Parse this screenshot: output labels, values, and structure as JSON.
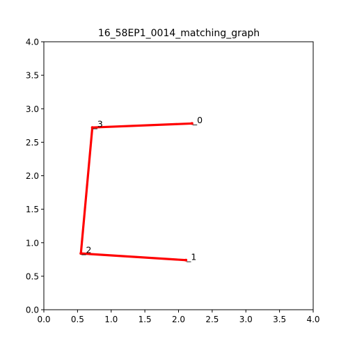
{
  "chart_data": {
    "type": "line",
    "title": "16_58EP1_0014_matching_graph",
    "xlabel": "",
    "ylabel": "",
    "xlim": [
      0.0,
      4.0
    ],
    "ylim": [
      0.0,
      4.0
    ],
    "grid": false,
    "x_ticks": [
      "0.0",
      "0.5",
      "1.0",
      "1.5",
      "2.0",
      "2.5",
      "3.0",
      "3.5",
      "4.0"
    ],
    "y_ticks": [
      "0.0",
      "0.5",
      "1.0",
      "1.5",
      "2.0",
      "2.5",
      "3.0",
      "3.5",
      "4.0"
    ],
    "nodes": [
      {
        "label": "_0",
        "x": 2.2,
        "y": 2.78
      },
      {
        "label": "_1",
        "x": 2.11,
        "y": 0.74
      },
      {
        "label": "_2",
        "x": 0.55,
        "y": 0.84
      },
      {
        "label": "_3",
        "x": 0.72,
        "y": 2.72
      }
    ],
    "edges": [
      {
        "from": 0,
        "to": 3
      },
      {
        "from": 3,
        "to": 2
      },
      {
        "from": 2,
        "to": 1
      }
    ],
    "edge_color": "#ff0000"
  }
}
